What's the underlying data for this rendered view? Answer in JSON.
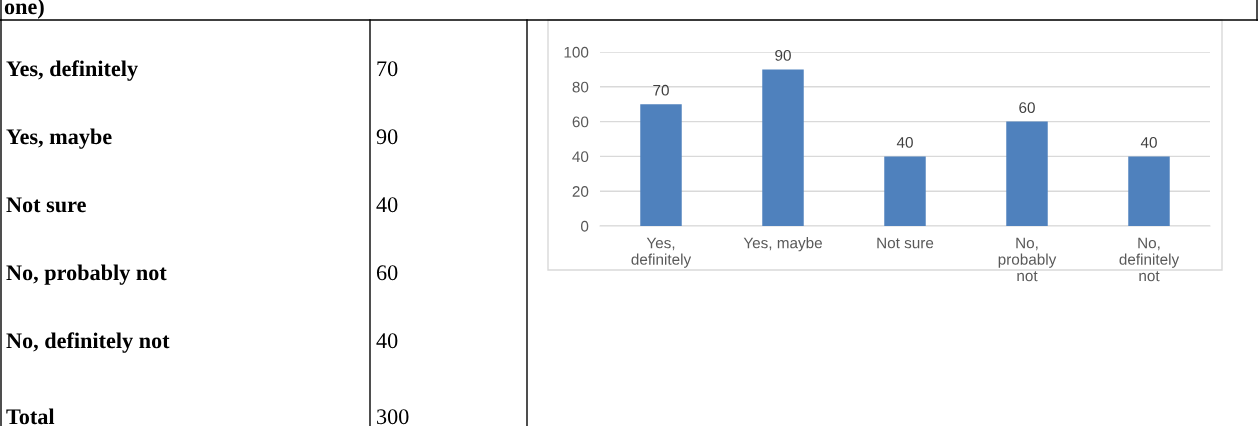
{
  "chart_data": {
    "type": "bar",
    "categories": [
      "Yes, definitely",
      "Yes, maybe",
      "Not sure",
      "No, probably not",
      "No, definitely not"
    ],
    "values": [
      70,
      90,
      40,
      60,
      40
    ],
    "color": "#4f81bd",
    "ylim": [
      0,
      100
    ],
    "yticks": [
      0,
      20,
      40,
      60,
      80,
      100
    ],
    "grid": "y",
    "data_labels": true,
    "annotations": [
      "one)",
      "70",
      "90",
      "40",
      "60",
      "40",
      "Total",
      "300"
    ]
  }
}
